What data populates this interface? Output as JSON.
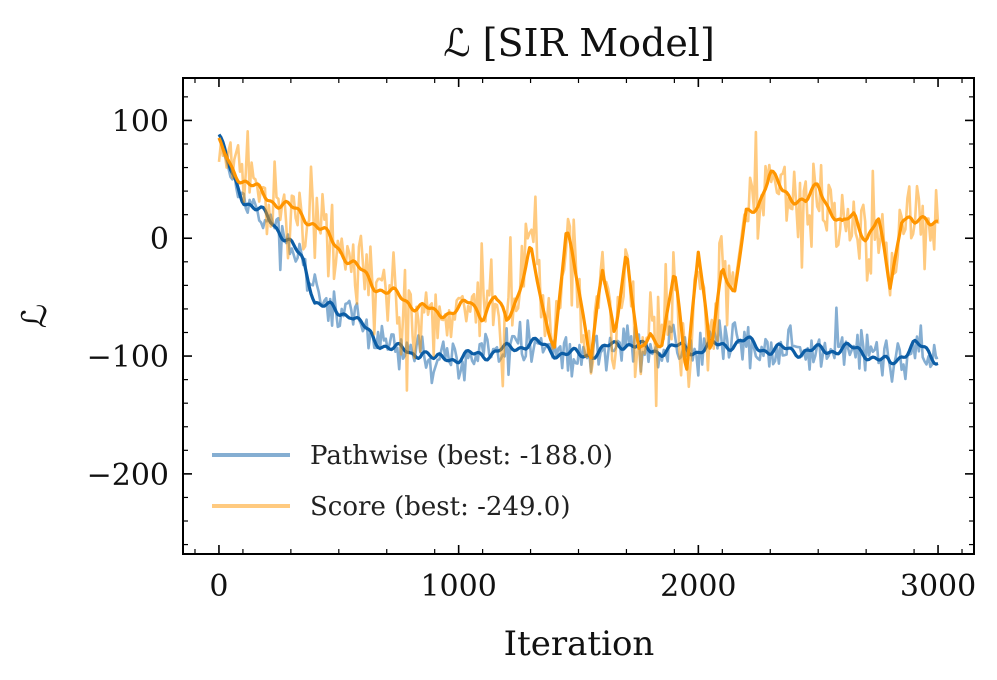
{
  "chart_data": {
    "type": "line",
    "title": "ℒ [SIR Model]",
    "xlabel": "Iteration",
    "ylabel": "ℒ",
    "xlim": [
      -150,
      3150
    ],
    "ylim": [
      -268,
      136
    ],
    "xticks": [
      0,
      1000,
      2000,
      3000
    ],
    "xtick_labels": [
      "0",
      "1000",
      "2000",
      "3000"
    ],
    "yticks": [
      100,
      0,
      -100,
      -200
    ],
    "ytick_labels": [
      "100",
      "0",
      "−100",
      "−200"
    ],
    "legend_position": "lower-left",
    "colors": {
      "pathwise": "#0C5DA5",
      "score": "#FF9500",
      "frame": "#000000"
    },
    "series": [
      {
        "name": "Pathwise (best: -188.0)",
        "key": "pathwise",
        "color": "#0C5DA5",
        "x": [
          0,
          50,
          100,
          150,
          200,
          250,
          300,
          350,
          400,
          450,
          500,
          550,
          600,
          650,
          700,
          750,
          800,
          850,
          900,
          950,
          1000,
          1100,
          1200,
          1300,
          1400,
          1500,
          1600,
          1700,
          1800,
          1900,
          2000,
          2100,
          2200,
          2300,
          2400,
          2500,
          2600,
          2700,
          2800,
          2850,
          2900,
          3000
        ],
        "values": [
          88,
          55,
          35,
          25,
          18,
          8,
          -5,
          -20,
          -52,
          -58,
          -65,
          -62,
          -75,
          -88,
          -90,
          -95,
          -98,
          -95,
          -105,
          -100,
          -102,
          -98,
          -95,
          -88,
          -96,
          -100,
          -95,
          -88,
          -96,
          -93,
          -95,
          -90,
          -88,
          -95,
          -95,
          -96,
          -93,
          -97,
          -108,
          -98,
          -90,
          -103
        ],
        "noise_amplitude": 28
      },
      {
        "name": "Score (best: -249.0)",
        "key": "score",
        "color": "#FF9500",
        "x": [
          0,
          50,
          100,
          150,
          200,
          250,
          300,
          350,
          400,
          450,
          500,
          550,
          600,
          650,
          700,
          750,
          800,
          850,
          900,
          950,
          1000,
          1050,
          1100,
          1150,
          1200,
          1250,
          1300,
          1350,
          1400,
          1450,
          1500,
          1550,
          1600,
          1650,
          1700,
          1750,
          1800,
          1850,
          1900,
          1950,
          2000,
          2050,
          2100,
          2150,
          2200,
          2250,
          2300,
          2350,
          2400,
          2450,
          2500,
          2550,
          2600,
          2650,
          2700,
          2750,
          2800,
          2850,
          2900,
          2950,
          3000
        ],
        "values": [
          80,
          60,
          50,
          42,
          35,
          30,
          25,
          20,
          12,
          2,
          -8,
          -20,
          -30,
          -40,
          -45,
          -50,
          -55,
          -58,
          -65,
          -62,
          -60,
          -55,
          -65,
          -50,
          -70,
          -45,
          -10,
          -60,
          -90,
          5,
          -40,
          -100,
          -30,
          -80,
          -10,
          -100,
          -80,
          -90,
          -30,
          -110,
          -10,
          -100,
          -20,
          -50,
          20,
          30,
          55,
          40,
          35,
          30,
          45,
          25,
          10,
          20,
          0,
          15,
          -40,
          20,
          10,
          18,
          15
        ],
        "noise_amplitude": 55
      }
    ]
  }
}
